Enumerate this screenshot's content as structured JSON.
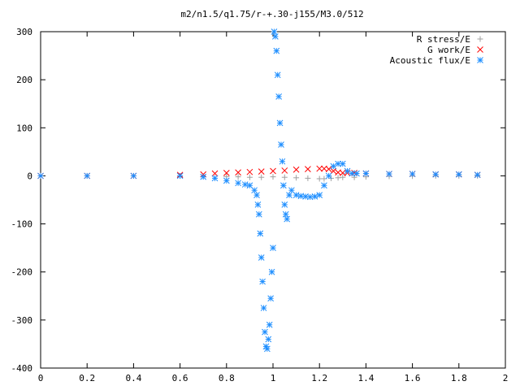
{
  "chart_data": {
    "type": "scatter",
    "title": "m2/n1.5/q1.75/r-+.30-j155/M3.0/512",
    "xlabel": "",
    "ylabel": "",
    "xlim": [
      0,
      2
    ],
    "ylim": [
      -400,
      300
    ],
    "x_ticks": [
      0,
      0.2,
      0.4,
      0.6,
      0.8,
      1,
      1.2,
      1.4,
      1.6,
      1.8,
      2
    ],
    "x_tick_labels": [
      "0",
      "0.2",
      "0.4",
      "0.6",
      "0.8",
      "1",
      "1.2",
      "1.4",
      "1.6",
      "1.8",
      "2"
    ],
    "y_ticks": [
      -400,
      -300,
      -200,
      -100,
      0,
      100,
      200,
      300
    ],
    "y_tick_labels": [
      "-400",
      "-300",
      "-200",
      "-100",
      "0",
      "100",
      "200",
      "300"
    ],
    "grid": false,
    "legend_position": "top-right",
    "series": [
      {
        "name": "R stress/E",
        "marker": "plus",
        "color": "#a0a0a0",
        "x": [
          0.0,
          0.2,
          0.4,
          0.6,
          0.7,
          0.8,
          0.85,
          0.9,
          0.95,
          1.0,
          1.05,
          1.1,
          1.15,
          1.2,
          1.22,
          1.25,
          1.28,
          1.3,
          1.35,
          1.4,
          1.5,
          1.6,
          1.7,
          1.8,
          1.88
        ],
        "y": [
          0,
          0,
          0,
          -0.5,
          -1,
          -1.5,
          -2,
          -3,
          -3,
          -2,
          -3,
          -4,
          -5,
          -6,
          -6,
          -5,
          -4,
          -3,
          -3,
          -2,
          -1,
          -0.5,
          0,
          0,
          0
        ]
      },
      {
        "name": "G work/E",
        "marker": "cross",
        "color": "#ff0000",
        "x": [
          0.0,
          0.2,
          0.4,
          0.6,
          0.7,
          0.75,
          0.8,
          0.85,
          0.9,
          0.95,
          1.0,
          1.05,
          1.1,
          1.15,
          1.2,
          1.22,
          1.24,
          1.26,
          1.28,
          1.3,
          1.32,
          1.35,
          1.4,
          1.5,
          1.6,
          1.7,
          1.8,
          1.88
        ],
        "y": [
          0,
          0,
          0,
          2,
          3,
          5,
          6,
          7,
          8,
          9,
          10,
          11,
          13,
          14,
          15,
          15,
          14,
          10,
          7,
          6,
          6,
          6,
          5,
          4,
          4,
          3,
          3,
          2
        ]
      },
      {
        "name": "Acoustic flux/E",
        "marker": "star",
        "color": "#1f8fff",
        "x": [
          0.0,
          0.2,
          0.4,
          0.6,
          0.7,
          0.75,
          0.8,
          0.85,
          0.88,
          0.9,
          0.92,
          0.93,
          0.935,
          0.94,
          0.945,
          0.95,
          0.955,
          0.96,
          0.965,
          0.97,
          0.975,
          0.98,
          0.985,
          0.99,
          0.995,
          1.0,
          1.005,
          1.01,
          1.015,
          1.02,
          1.025,
          1.03,
          1.035,
          1.04,
          1.045,
          1.05,
          1.055,
          1.06,
          1.07,
          1.08,
          1.1,
          1.12,
          1.14,
          1.16,
          1.18,
          1.2,
          1.22,
          1.24,
          1.26,
          1.28,
          1.3,
          1.32,
          1.34,
          1.36,
          1.4,
          1.5,
          1.6,
          1.7,
          1.8,
          1.88
        ],
        "y": [
          0,
          0,
          0,
          0,
          -2,
          -5,
          -10,
          -15,
          -18,
          -20,
          -30,
          -40,
          -60,
          -80,
          -120,
          -170,
          -220,
          -275,
          -325,
          -355,
          -360,
          -340,
          -310,
          -255,
          -200,
          -150,
          300,
          290,
          260,
          210,
          165,
          110,
          65,
          30,
          -20,
          -60,
          -80,
          -90,
          -40,
          -30,
          -40,
          -42,
          -43,
          -44,
          -43,
          -40,
          -20,
          0,
          20,
          25,
          25,
          10,
          5,
          5,
          5,
          4,
          4,
          3,
          3,
          2
        ]
      }
    ]
  }
}
